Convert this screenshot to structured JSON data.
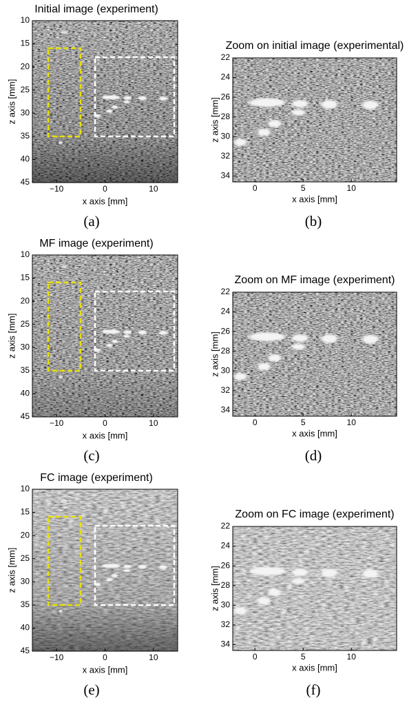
{
  "panels": [
    {
      "title": "Initial image (experiment)",
      "xlabel": "x axis [mm]",
      "ylabel": "z axis [mm]",
      "caption": "(a)",
      "xlim": [
        -15,
        15
      ],
      "ylim": [
        10,
        45
      ],
      "y_inverted": true,
      "xticks": [
        {
          "value": -10,
          "label": "−10"
        },
        0,
        10
      ],
      "yticks": [
        10,
        15,
        20,
        25,
        30,
        35,
        40,
        45
      ]
    },
    {
      "title": "Zoom on initial image (experimental)",
      "xlabel": "x axis [mm]",
      "ylabel": "z axis [mm]",
      "caption": "(b)",
      "xlim": [
        -2.3,
        14.7
      ],
      "ylim": [
        22,
        34.6
      ],
      "y_inverted": true,
      "xticks": [
        0,
        5,
        10
      ],
      "yticks": [
        22,
        24,
        26,
        28,
        30,
        32,
        34
      ]
    },
    {
      "title": "MF image (experiment)",
      "xlabel": "x axis [mm]",
      "ylabel": "z axis [mm]",
      "caption": "(c)",
      "xlim": [
        -15,
        15
      ],
      "ylim": [
        10,
        45
      ],
      "y_inverted": true,
      "xticks": [
        {
          "value": -10,
          "label": "−10"
        },
        0,
        10
      ],
      "yticks": [
        10,
        15,
        20,
        25,
        30,
        35,
        40,
        45
      ]
    },
    {
      "title": "Zoom on MF image (experiment)",
      "xlabel": "x axis [mm]",
      "ylabel": "z axis [mm]",
      "caption": "(d)",
      "xlim": [
        -2.3,
        14.7
      ],
      "ylim": [
        22,
        34.6
      ],
      "y_inverted": true,
      "xticks": [
        0,
        5,
        10
      ],
      "yticks": [
        22,
        24,
        26,
        28,
        30,
        32,
        34
      ]
    },
    {
      "title": "FC image (experiment)",
      "xlabel": "x axis [mm]",
      "ylabel": "z axis [mm]",
      "caption": "(e)",
      "xlim": [
        -15,
        15
      ],
      "ylim": [
        10,
        45
      ],
      "y_inverted": true,
      "xticks": [
        {
          "value": -10,
          "label": "−10"
        },
        0,
        10
      ],
      "yticks": [
        10,
        15,
        20,
        25,
        30,
        35,
        40,
        45
      ]
    },
    {
      "title": "Zoom on FC image (experiment)",
      "xlabel": "x axis [mm]",
      "ylabel": "z axis [mm]",
      "caption": "(f)",
      "xlim": [
        -2.3,
        14.7
      ],
      "ylim": [
        22,
        34.6
      ],
      "y_inverted": true,
      "xticks": [
        0,
        5,
        10
      ],
      "yticks": [
        22,
        24,
        26,
        28,
        30,
        32,
        34
      ]
    }
  ]
}
